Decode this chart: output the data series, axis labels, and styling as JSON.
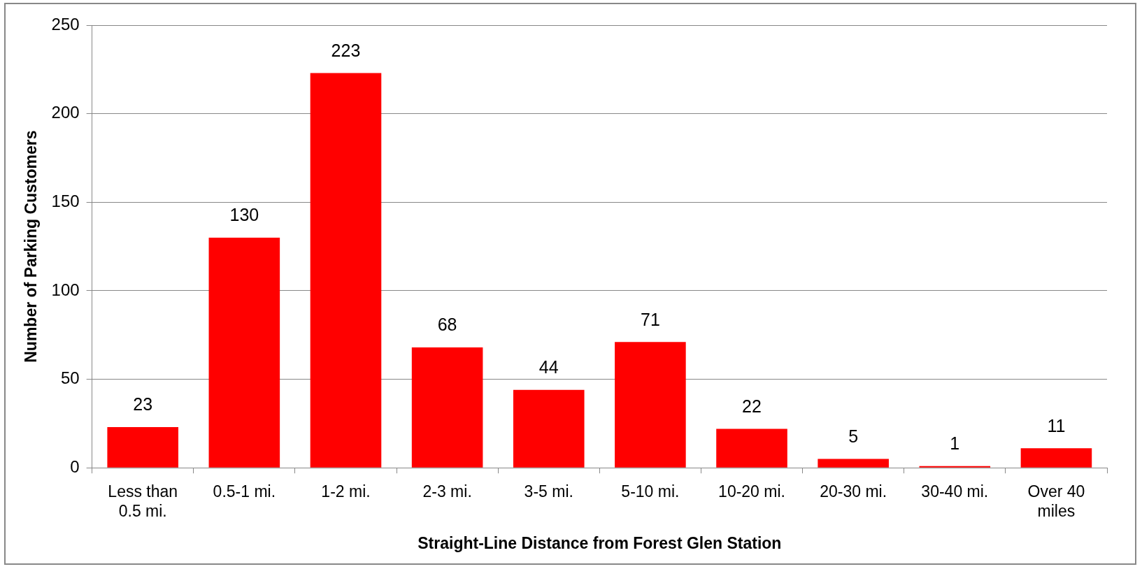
{
  "chart_data": {
    "type": "bar",
    "xlabel": "Straight-Line Distance from Forest Glen Station",
    "ylabel": "Number of Parking Customers",
    "categories": [
      "Less than 0.5 mi.",
      "0.5-1 mi.",
      "1-2 mi.",
      "2-3 mi.",
      "3-5 mi.",
      "5-10 mi.",
      "10-20 mi.",
      "20-30 mi.",
      "30-40 mi.",
      "Over 40 miles"
    ],
    "values": [
      23,
      130,
      223,
      68,
      44,
      71,
      22,
      5,
      1,
      11
    ],
    "color": "#ff0000",
    "ylim": [
      0,
      250
    ],
    "yticks": [
      0,
      50,
      100,
      150,
      200,
      250
    ],
    "grid": "y",
    "legend": false,
    "data_labels": true
  }
}
